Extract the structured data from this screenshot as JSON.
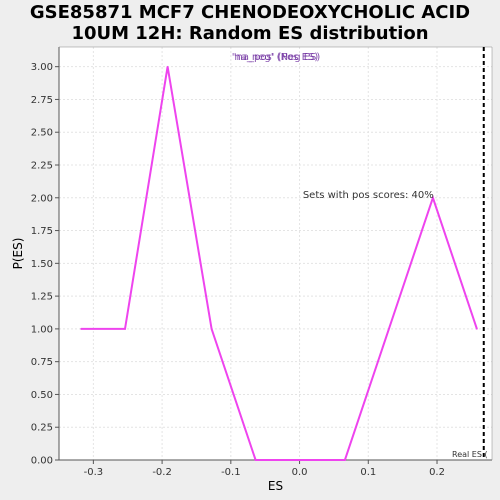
{
  "title_line1": "GSE85871 MCF7 CHENODEOXYCHOLIC ACID",
  "title_line2": "10UM 12H: Random ES distribution",
  "chart_data": {
    "type": "line",
    "title": "GSE85871 MCF7 CHENODEOXYCHOLIC ACID 10UM 12H: Random ES distribution",
    "xlabel": "ES",
    "ylabel": "P(ES)",
    "xlim": [
      -0.35,
      0.28
    ],
    "ylim": [
      0,
      3.15
    ],
    "x_ticks": [
      -0.3,
      -0.2,
      -0.1,
      0.0,
      0.1,
      0.2
    ],
    "x_tick_labels": [
      "-0.3",
      "-0.2",
      "-0.1",
      "0.0",
      "0.1",
      "0.2"
    ],
    "y_ticks": [
      0,
      0.25,
      0.5,
      0.75,
      1.0,
      1.25,
      1.5,
      1.75,
      2.0,
      2.25,
      2.5,
      2.75,
      3.0
    ],
    "y_tick_labels": [
      "0.00",
      "0.25",
      "0.50",
      "0.75",
      "1.00",
      "1.25",
      "1.50",
      "1.75",
      "2.00",
      "2.25",
      "2.50",
      "2.75",
      "3.00"
    ],
    "grid": true,
    "series": [
      {
        "name": "'na_neg' (Neg ES)",
        "color": "#ee44ee",
        "x": [
          -0.318,
          -0.254,
          -0.192,
          -0.128,
          -0.064,
          0.002,
          0.066,
          0.13,
          0.194,
          0.258
        ],
        "y": [
          1.0,
          1.0,
          3.0,
          1.0,
          0.0,
          0.0,
          0.0,
          1.0,
          2.0,
          1.0
        ]
      }
    ],
    "annotations": [
      {
        "text": "Sets with pos scores: 40%",
        "x": 0.1,
        "y": 2.0
      }
    ],
    "real_es": {
      "label": "Real ES (",
      "x": 0.268
    },
    "legend": {
      "labels": [
        "'na_pos' (Pos ES)",
        "'na_neg' (Neg ES)"
      ],
      "position": "top-center"
    }
  },
  "colors": {
    "series_line": "#ee44ee",
    "legend_text": "#7030a0",
    "real_es_line": "#000000",
    "plot_background": "#ffffff",
    "page_background": "#eeeeee"
  }
}
